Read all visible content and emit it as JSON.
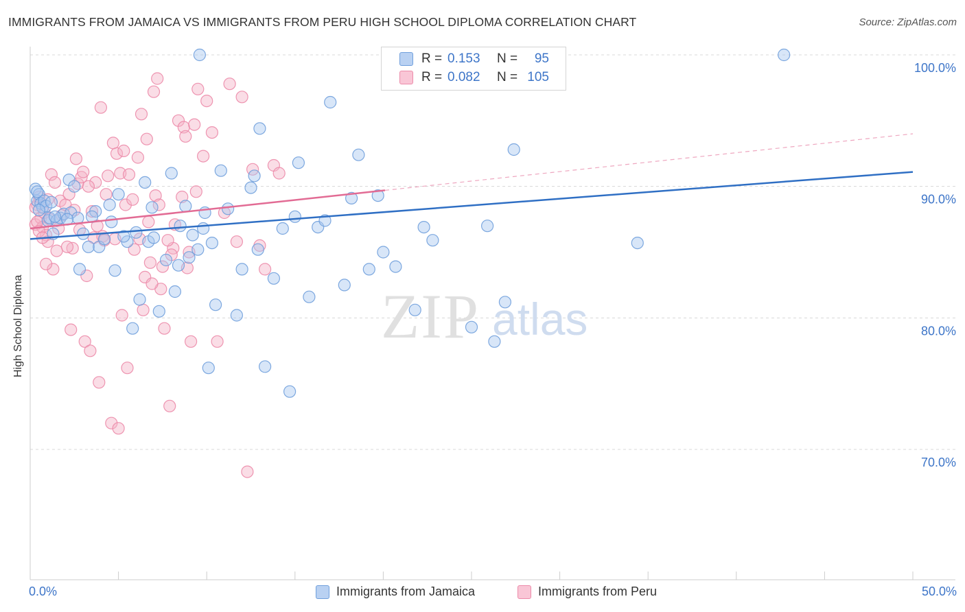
{
  "title": "IMMIGRANTS FROM JAMAICA VS IMMIGRANTS FROM PERU HIGH SCHOOL DIPLOMA CORRELATION CHART",
  "source": "Source: ZipAtlas.com",
  "watermark": {
    "zip": "ZIP",
    "atlas": "atlas"
  },
  "colors": {
    "jamaica_fill": "#a9c7ef",
    "jamaica_stroke": "#6f9fdc",
    "jamaica_line": "#2f6fc4",
    "peru_fill": "#f5b3c8",
    "peru_stroke": "#ec8aa9",
    "peru_line": "#e26b94",
    "axis_text": "#3d75c8",
    "grid": "#d8d8d8"
  },
  "stats": {
    "jamaica": {
      "r_label": "R =",
      "r_value": "0.153",
      "n_label": "N =",
      "n_value": "95"
    },
    "peru": {
      "r_label": "R =",
      "r_value": "0.082",
      "n_label": "N =",
      "n_value": "105"
    }
  },
  "chart_data": {
    "type": "scatter",
    "title": "IMMIGRANTS FROM JAMAICA VS IMMIGRANTS FROM PERU HIGH SCHOOL DIPLOMA CORRELATION CHART",
    "xlabel": "",
    "ylabel": "High School Diploma",
    "xlim": [
      0,
      50
    ],
    "ylim": [
      60,
      100
    ],
    "x_tick_labels": [
      "0.0%",
      "50.0%"
    ],
    "y_ticks": [
      70,
      80,
      90,
      100
    ],
    "y_tick_labels": [
      "70.0%",
      "80.0%",
      "90.0%",
      "100.0%"
    ],
    "grid": true,
    "legend_position": "bottom-center",
    "series": [
      {
        "name": "Immigrants from Jamaica",
        "trend": {
          "x": [
            0,
            50
          ],
          "y": [
            86.0,
            91.1
          ]
        },
        "points": [
          [
            0.3,
            89.8
          ],
          [
            0.4,
            88.9
          ],
          [
            0.5,
            89.4
          ],
          [
            0.6,
            88.7
          ],
          [
            0.7,
            88.4
          ],
          [
            0.8,
            88.9
          ],
          [
            0.9,
            88.5
          ],
          [
            1.0,
            87.4
          ],
          [
            1.1,
            87.6
          ],
          [
            1.3,
            86.4
          ],
          [
            1.5,
            87.4
          ],
          [
            1.7,
            87.6
          ],
          [
            1.9,
            87.9
          ],
          [
            2.2,
            90.5
          ],
          [
            2.3,
            88.0
          ],
          [
            2.5,
            90.0
          ],
          [
            2.7,
            87.6
          ],
          [
            2.8,
            83.7
          ],
          [
            3.0,
            86.4
          ],
          [
            3.3,
            85.4
          ],
          [
            3.7,
            88.1
          ],
          [
            3.9,
            85.4
          ],
          [
            4.2,
            86.0
          ],
          [
            4.5,
            88.6
          ],
          [
            4.6,
            87.3
          ],
          [
            4.8,
            83.6
          ],
          [
            5.0,
            89.4
          ],
          [
            5.5,
            85.8
          ],
          [
            5.8,
            79.2
          ],
          [
            6.2,
            81.4
          ],
          [
            6.5,
            90.3
          ],
          [
            6.7,
            85.8
          ],
          [
            6.9,
            88.4
          ],
          [
            7.3,
            80.5
          ],
          [
            7.7,
            84.4
          ],
          [
            8.0,
            91.0
          ],
          [
            8.2,
            82.0
          ],
          [
            8.5,
            87.0
          ],
          [
            8.8,
            88.5
          ],
          [
            9.0,
            84.6
          ],
          [
            9.2,
            86.3
          ],
          [
            9.5,
            85.2
          ],
          [
            9.8,
            86.8
          ],
          [
            10.1,
            76.2
          ],
          [
            10.3,
            85.7
          ],
          [
            10.5,
            81.0
          ],
          [
            10.8,
            91.2
          ],
          [
            11.2,
            88.3
          ],
          [
            11.7,
            80.2
          ],
          [
            12.0,
            83.7
          ],
          [
            12.5,
            89.9
          ],
          [
            12.9,
            85.2
          ],
          [
            13.0,
            94.4
          ],
          [
            13.3,
            76.3
          ],
          [
            13.8,
            83.0
          ],
          [
            14.3,
            86.8
          ],
          [
            14.7,
            74.4
          ],
          [
            15.0,
            87.7
          ],
          [
            15.2,
            91.8
          ],
          [
            15.8,
            81.6
          ],
          [
            16.3,
            86.9
          ],
          [
            16.7,
            87.4
          ],
          [
            17.0,
            96.4
          ],
          [
            17.8,
            82.5
          ],
          [
            18.2,
            89.1
          ],
          [
            18.6,
            92.4
          ],
          [
            19.2,
            83.7
          ],
          [
            19.7,
            89.3
          ],
          [
            20.0,
            85.0
          ],
          [
            20.7,
            83.9
          ],
          [
            21.8,
            80.6
          ],
          [
            22.3,
            86.9
          ],
          [
            22.8,
            85.9
          ],
          [
            23.4,
            98.0
          ],
          [
            25.0,
            79.3
          ],
          [
            25.9,
            87.0
          ],
          [
            26.3,
            78.2
          ],
          [
            26.9,
            81.2
          ],
          [
            27.4,
            92.8
          ],
          [
            34.4,
            85.7
          ],
          [
            9.6,
            100.0
          ],
          [
            42.7,
            100.0
          ],
          [
            21.8,
            100.0
          ],
          [
            0.4,
            89.6
          ],
          [
            0.5,
            88.2
          ],
          [
            1.2,
            88.8
          ],
          [
            1.4,
            87.7
          ],
          [
            2.1,
            87.5
          ],
          [
            3.5,
            87.7
          ],
          [
            5.3,
            86.2
          ],
          [
            6.0,
            86.5
          ],
          [
            7.0,
            86.1
          ],
          [
            8.4,
            84.0
          ],
          [
            9.9,
            88.0
          ],
          [
            12.7,
            90.8
          ]
        ]
      },
      {
        "name": "Immigrants from Peru",
        "trend": {
          "x": [
            0,
            20.1
          ],
          "y": [
            86.8,
            89.7
          ]
        },
        "trend_dashed": {
          "x": [
            20.1,
            50
          ],
          "y": [
            89.7,
            94.0
          ]
        },
        "points": [
          [
            0.3,
            87.1
          ],
          [
            0.4,
            88.6
          ],
          [
            0.5,
            89.2
          ],
          [
            0.6,
            87.6
          ],
          [
            0.7,
            86.9
          ],
          [
            0.8,
            88.0
          ],
          [
            0.9,
            86.3
          ],
          [
            1.0,
            85.8
          ],
          [
            1.1,
            87.5
          ],
          [
            1.2,
            90.9
          ],
          [
            1.3,
            83.7
          ],
          [
            1.4,
            90.3
          ],
          [
            1.5,
            85.1
          ],
          [
            1.7,
            88.9
          ],
          [
            1.8,
            87.8
          ],
          [
            2.0,
            88.6
          ],
          [
            2.2,
            89.4
          ],
          [
            2.3,
            79.1
          ],
          [
            2.4,
            85.3
          ],
          [
            2.6,
            92.1
          ],
          [
            2.7,
            90.2
          ],
          [
            2.9,
            90.7
          ],
          [
            3.1,
            78.2
          ],
          [
            3.2,
            83.2
          ],
          [
            3.4,
            77.5
          ],
          [
            3.6,
            86.1
          ],
          [
            3.7,
            90.3
          ],
          [
            3.9,
            75.1
          ],
          [
            4.1,
            86.2
          ],
          [
            4.3,
            89.4
          ],
          [
            4.6,
            72.0
          ],
          [
            4.8,
            86.0
          ],
          [
            5.0,
            71.6
          ],
          [
            5.2,
            80.2
          ],
          [
            5.4,
            88.6
          ],
          [
            5.5,
            76.2
          ],
          [
            5.9,
            85.2
          ],
          [
            6.1,
            92.2
          ],
          [
            6.4,
            80.6
          ],
          [
            6.6,
            93.6
          ],
          [
            6.8,
            84.2
          ],
          [
            7.0,
            97.2
          ],
          [
            7.2,
            98.2
          ],
          [
            7.4,
            82.2
          ],
          [
            7.6,
            79.2
          ],
          [
            7.9,
            73.3
          ],
          [
            8.1,
            85.3
          ],
          [
            8.4,
            95.0
          ],
          [
            8.7,
            94.5
          ],
          [
            8.9,
            83.8
          ],
          [
            9.1,
            78.2
          ],
          [
            9.3,
            94.7
          ],
          [
            9.5,
            97.4
          ],
          [
            9.8,
            92.3
          ],
          [
            10.0,
            96.5
          ],
          [
            10.3,
            94.1
          ],
          [
            10.6,
            78.2
          ],
          [
            11.0,
            88.0
          ],
          [
            11.3,
            97.8
          ],
          [
            11.7,
            85.8
          ],
          [
            12.0,
            96.8
          ],
          [
            12.3,
            68.3
          ],
          [
            12.6,
            91.3
          ],
          [
            13.0,
            85.5
          ],
          [
            13.3,
            83.7
          ],
          [
            13.8,
            91.6
          ],
          [
            14.1,
            91.0
          ],
          [
            0.3,
            88.4
          ],
          [
            0.4,
            87.3
          ],
          [
            0.5,
            86.6
          ],
          [
            0.7,
            86.1
          ],
          [
            0.9,
            84.1
          ],
          [
            1.0,
            89.0
          ],
          [
            1.6,
            86.8
          ],
          [
            2.1,
            85.4
          ],
          [
            2.5,
            88.2
          ],
          [
            2.8,
            86.7
          ],
          [
            3.0,
            91.1
          ],
          [
            3.3,
            90.0
          ],
          [
            3.5,
            88.1
          ],
          [
            3.8,
            87.0
          ],
          [
            4.0,
            96.0
          ],
          [
            4.2,
            85.9
          ],
          [
            4.4,
            90.8
          ],
          [
            4.7,
            93.3
          ],
          [
            4.9,
            92.5
          ],
          [
            5.1,
            91.0
          ],
          [
            5.3,
            92.7
          ],
          [
            5.6,
            90.9
          ],
          [
            5.8,
            89.0
          ],
          [
            6.2,
            86.0
          ],
          [
            6.3,
            95.5
          ],
          [
            6.5,
            83.1
          ],
          [
            6.7,
            87.3
          ],
          [
            6.9,
            82.6
          ],
          [
            7.1,
            89.3
          ],
          [
            7.3,
            88.6
          ],
          [
            7.5,
            83.9
          ],
          [
            7.8,
            85.9
          ],
          [
            8.0,
            84.8
          ],
          [
            8.2,
            87.1
          ],
          [
            8.6,
            89.2
          ],
          [
            8.8,
            93.8
          ],
          [
            9.0,
            85.0
          ],
          [
            9.4,
            89.6
          ]
        ]
      }
    ]
  },
  "legend": {
    "jamaica": "Immigrants from Jamaica",
    "peru": "Immigrants from Peru"
  },
  "axes": {
    "x_min_label": "0.0%",
    "x_max_label": "50.0%",
    "y_label": "High School Diploma"
  }
}
